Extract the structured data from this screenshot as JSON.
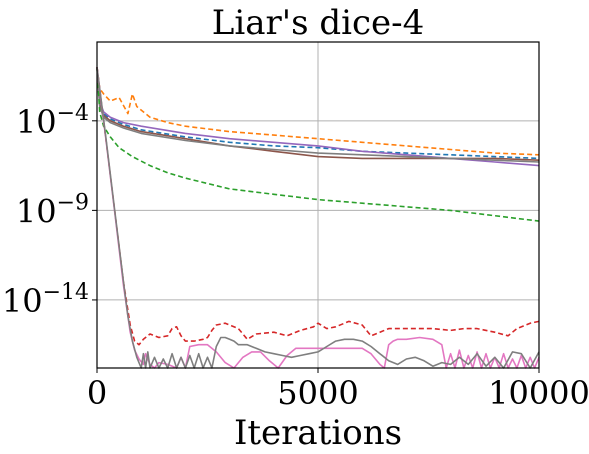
{
  "chart_data": {
    "type": "line",
    "title": "Liar's dice-4",
    "xlabel": "Iterations",
    "ylabel": "",
    "xlim": [
      0,
      10000
    ],
    "ylim_log10": [
      -17.8,
      0.4
    ],
    "yscale": "log",
    "grid": true,
    "xticks": [
      {
        "value": 0,
        "label": "0"
      },
      {
        "value": 5000,
        "label": "5000"
      },
      {
        "value": 10000,
        "label": "10000"
      }
    ],
    "yticks": [
      {
        "exp": -4,
        "base": "10",
        "sup": "−4"
      },
      {
        "exp": -9,
        "base": "10",
        "sup": "−9"
      },
      {
        "exp": -14,
        "base": "10",
        "sup": "−14"
      }
    ],
    "series": [
      {
        "color": "#ff7f0e",
        "dash": true,
        "x": [
          0,
          60,
          150,
          300,
          500,
          700,
          800,
          900,
          1200,
          1600,
          2000,
          3000,
          4000,
          5000,
          6000,
          7000,
          8000,
          9000,
          10000
        ],
        "y": [
          -1.0,
          -2.2,
          -2.5,
          -2.9,
          -2.7,
          -3.6,
          -2.5,
          -3.2,
          -3.8,
          -4.1,
          -4.3,
          -4.6,
          -4.8,
          -5.0,
          -5.2,
          -5.4,
          -5.6,
          -5.8,
          -5.9
        ]
      },
      {
        "color": "#1f77b4",
        "dash": true,
        "x": [
          0,
          60,
          150,
          300,
          600,
          1000,
          1500,
          2000,
          3000,
          4000,
          5000,
          6000,
          7000,
          8000,
          9000,
          10000
        ],
        "y": [
          -1.0,
          -3.0,
          -3.6,
          -3.9,
          -4.2,
          -4.5,
          -4.7,
          -4.9,
          -5.2,
          -5.4,
          -5.5,
          -5.7,
          -5.8,
          -5.9,
          -6.0,
          -6.1
        ]
      },
      {
        "color": "#9467bd",
        "dash": false,
        "x": [
          0,
          60,
          150,
          300,
          600,
          1000,
          1500,
          2000,
          3000,
          4000,
          5000,
          6000,
          7000,
          8000,
          9000,
          10000
        ],
        "y": [
          -1.0,
          -2.9,
          -3.5,
          -3.8,
          -4.1,
          -4.3,
          -4.5,
          -4.7,
          -5.0,
          -5.2,
          -5.4,
          -5.7,
          -5.9,
          -6.1,
          -6.3,
          -6.5
        ]
      },
      {
        "color": "#8c564b",
        "dash": false,
        "x": [
          0,
          60,
          150,
          300,
          600,
          1000,
          1500,
          2000,
          3000,
          4000,
          5000,
          6000,
          7000,
          8000,
          9000,
          10000
        ],
        "y": [
          -1.0,
          -3.1,
          -3.7,
          -4.0,
          -4.3,
          -4.6,
          -4.8,
          -5.0,
          -5.4,
          -5.7,
          -6.0,
          -6.1,
          -6.1,
          -6.1,
          -6.1,
          -6.2
        ]
      },
      {
        "color": "#7f7f7f",
        "dash": false,
        "x": [
          0,
          60,
          150,
          300,
          600,
          1000,
          1500,
          2000,
          3000,
          4000,
          5000,
          6000,
          7000,
          8000,
          9000,
          10000
        ],
        "y": [
          -1.0,
          -3.2,
          -3.8,
          -4.1,
          -4.4,
          -4.7,
          -4.9,
          -5.1,
          -5.4,
          -5.6,
          -5.8,
          -5.9,
          -6.0,
          -6.1,
          -6.2,
          -6.3
        ]
      },
      {
        "color": "#2ca02c",
        "dash": true,
        "x": [
          0,
          60,
          150,
          300,
          500,
          800,
          1200,
          1600,
          2000,
          2500,
          3000,
          4000,
          5000,
          6000,
          7000,
          8000,
          9000,
          10000
        ],
        "y": [
          -1.0,
          -3.5,
          -4.3,
          -4.9,
          -5.5,
          -6.0,
          -6.5,
          -6.9,
          -7.2,
          -7.5,
          -7.8,
          -8.1,
          -8.4,
          -8.6,
          -8.8,
          -9.0,
          -9.3,
          -9.6
        ]
      },
      {
        "color": "#d62728",
        "dash": true,
        "x": [
          0,
          200,
          400,
          600,
          750,
          850,
          950,
          1050,
          1200,
          1400,
          1600,
          1700,
          1800,
          1900,
          2000,
          2200,
          2400,
          2500,
          2600,
          2700,
          2900,
          3200,
          3400,
          3600,
          4000,
          4300,
          4600,
          4900,
          5000,
          5200,
          5400,
          5700,
          6000,
          6200,
          6400,
          6600,
          6800,
          7200,
          7600,
          8000,
          8300,
          8600,
          9000,
          9300,
          9500,
          9800,
          10000
        ],
        "y": [
          -1.0,
          -5.0,
          -9.0,
          -13.0,
          -15.4,
          -16.3,
          -16.5,
          -16.2,
          -15.9,
          -16.1,
          -16.0,
          -15.6,
          -15.5,
          -16.0,
          -16.3,
          -16.3,
          -16.2,
          -16.1,
          -15.7,
          -15.4,
          -15.3,
          -15.6,
          -16.2,
          -15.9,
          -15.8,
          -16.0,
          -15.7,
          -15.5,
          -15.3,
          -15.6,
          -15.5,
          -15.2,
          -15.4,
          -16.0,
          -15.8,
          -15.6,
          -15.6,
          -15.6,
          -15.6,
          -15.7,
          -15.6,
          -15.6,
          -15.8,
          -16.0,
          -15.6,
          -15.3,
          -15.2
        ]
      },
      {
        "color": "#e377c2",
        "dash": false,
        "x": [
          0,
          200,
          400,
          600,
          750,
          850,
          950,
          1050,
          1100,
          1200,
          1300,
          1400,
          1600,
          1800,
          1900,
          2000,
          2100,
          2300,
          2500,
          2700,
          2900,
          3100,
          3300,
          3500,
          3700,
          3900,
          4100,
          4300,
          4500,
          4800,
          5200,
          5600,
          6000,
          6200,
          6400,
          6500,
          6600,
          6700,
          6800,
          7000,
          7300,
          7600,
          7800,
          7900,
          8000,
          8100,
          8200,
          8300,
          8400,
          8500,
          8600,
          8700,
          8800,
          8900,
          9000,
          9100,
          9200,
          9300,
          9400,
          9500,
          9600,
          9700,
          9800,
          9900,
          10000
        ],
        "y": [
          -1.0,
          -5.0,
          -9.1,
          -13.2,
          -15.8,
          -16.8,
          -17.3,
          -17.6,
          -17.0,
          -17.6,
          -17.8,
          -17.5,
          -17.6,
          -17.8,
          -17.2,
          -17.8,
          -16.6,
          -16.5,
          -16.5,
          -16.9,
          -17.5,
          -17.8,
          -17.2,
          -16.9,
          -16.9,
          -17.4,
          -17.8,
          -17.1,
          -16.7,
          -16.7,
          -16.7,
          -16.7,
          -16.7,
          -17.0,
          -17.6,
          -17.8,
          -16.5,
          -16.3,
          -16.2,
          -16.2,
          -16.1,
          -16.2,
          -16.5,
          -17.8,
          -17.0,
          -17.8,
          -16.8,
          -17.8,
          -17.1,
          -17.8,
          -16.9,
          -17.8,
          -17.0,
          -17.8,
          -17.2,
          -17.8,
          -17.0,
          -17.8,
          -17.3,
          -17.8,
          -17.1,
          -17.8,
          -17.2,
          -17.8,
          -17.2
        ]
      },
      {
        "color": "#7f7f7f",
        "dash": false,
        "x": [
          0,
          200,
          400,
          600,
          700,
          800,
          900,
          1000,
          1050,
          1100,
          1150,
          1200,
          1300,
          1400,
          1500,
          1600,
          1700,
          1800,
          1900,
          2000,
          2100,
          2200,
          2300,
          2400,
          2500,
          2600,
          2700,
          2800,
          2900,
          3000,
          3100,
          3200,
          3400,
          3600,
          3800,
          4000,
          4200,
          4400,
          4600,
          4800,
          5000,
          5200,
          5400,
          5600,
          5800,
          6000,
          6200,
          6400,
          6600,
          6800,
          7000,
          7200,
          7400,
          7600,
          7800,
          8000,
          8200,
          8400,
          8600,
          8800,
          9000,
          9200,
          9400,
          9600,
          9800,
          10000
        ],
        "y": [
          -1.0,
          -4.9,
          -9.0,
          -13.0,
          -14.9,
          -16.3,
          -17.2,
          -17.8,
          -17.0,
          -17.8,
          -16.9,
          -17.8,
          -17.2,
          -17.8,
          -17.3,
          -17.8,
          -17.0,
          -17.8,
          -17.2,
          -17.8,
          -17.1,
          -17.8,
          -17.0,
          -17.8,
          -17.2,
          -17.8,
          -16.6,
          -16.1,
          -16.1,
          -16.2,
          -16.3,
          -16.5,
          -16.5,
          -16.7,
          -16.9,
          -17.0,
          -17.1,
          -17.2,
          -17.1,
          -17.0,
          -16.9,
          -16.6,
          -16.3,
          -16.2,
          -16.2,
          -16.3,
          -16.6,
          -17.0,
          -17.4,
          -17.6,
          -17.3,
          -17.2,
          -17.4,
          -17.7,
          -17.5,
          -17.6,
          -17.2,
          -17.6,
          -17.0,
          -17.7,
          -17.2,
          -17.8,
          -16.9,
          -17.0,
          -17.8,
          -16.9
        ]
      }
    ]
  }
}
